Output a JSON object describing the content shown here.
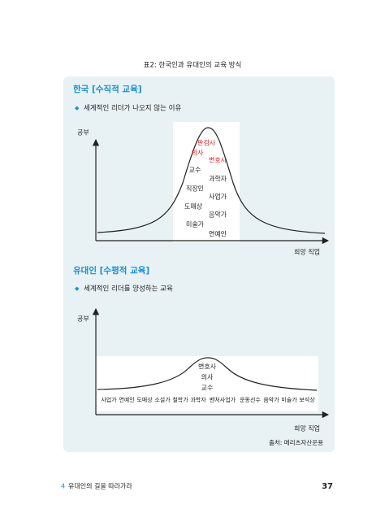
{
  "caption": "표2: 한국인과 유대인의 교육 방식",
  "sections": [
    {
      "title": "한국 [수직적 교육]",
      "bullet": "세계적인 리더가 나오지 않는 이유",
      "y_label": "공부",
      "x_label": "희망 직업",
      "top_jobs": [
        "판검사",
        "의사",
        "변호사"
      ],
      "jobs": [
        "교수",
        "과학자",
        "직장인",
        "사업가",
        "도매상",
        "음악가",
        "미술가",
        "연예인"
      ]
    },
    {
      "title": "유대인 [수평적 교육]",
      "bullet": "세계적인 리더를 양성하는 교육",
      "y_label": "공부",
      "x_label": "희망 직업",
      "top_jobs": [
        "변호사",
        "의사",
        "교수"
      ],
      "jobs": [
        "사업가",
        "연예인",
        "도매상",
        "소설가",
        "철학가",
        "과학자",
        "벤처사업가",
        "운동선수",
        "음악가",
        "미술가",
        "보석상"
      ]
    }
  ],
  "source": "출처: 메리츠자산운용",
  "footer": {
    "chapter_number": "4",
    "chapter_title": "유대인의 길을 따라가라",
    "page": "37"
  }
}
